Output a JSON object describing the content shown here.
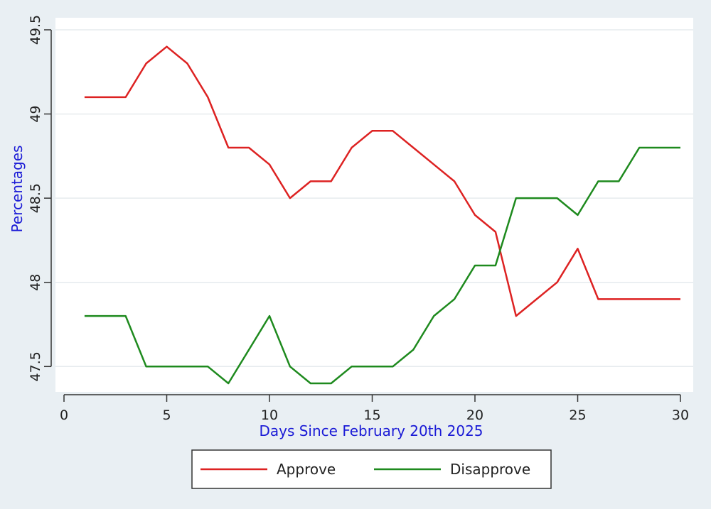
{
  "chart_data": {
    "type": "line",
    "title": "",
    "xlabel": "Days Since February 20th 2025",
    "ylabel": "Percentages",
    "xlim": [
      0,
      30
    ],
    "ylim": [
      47.4,
      49.5
    ],
    "x_ticks": [
      0,
      5,
      10,
      15,
      20,
      25,
      30
    ],
    "y_ticks": [
      47.5,
      48,
      48.5,
      49,
      49.5
    ],
    "grid": true,
    "legend_position": "bottom",
    "x": [
      1,
      2,
      3,
      4,
      5,
      6,
      7,
      8,
      9,
      10,
      11,
      12,
      13,
      14,
      15,
      16,
      17,
      18,
      19,
      20,
      21,
      22,
      23,
      24,
      25,
      26,
      27,
      28,
      29,
      30
    ],
    "series": [
      {
        "name": "Approve",
        "color": "#dd2222",
        "values": [
          49.1,
          49.1,
          49.1,
          49.3,
          49.4,
          49.3,
          49.1,
          48.8,
          48.8,
          48.7,
          48.5,
          48.6,
          48.6,
          48.8,
          48.9,
          48.9,
          48.8,
          48.7,
          48.6,
          48.4,
          48.3,
          47.8,
          47.9,
          48.0,
          48.2,
          47.9,
          47.9,
          47.9,
          47.9,
          47.9
        ]
      },
      {
        "name": "Disapprove",
        "color": "#1e8a1e",
        "values": [
          47.8,
          47.8,
          47.8,
          47.5,
          47.5,
          47.5,
          47.5,
          47.4,
          47.6,
          47.8,
          47.5,
          47.4,
          47.4,
          47.5,
          47.5,
          47.5,
          47.6,
          47.8,
          47.9,
          48.1,
          48.1,
          48.5,
          48.5,
          48.5,
          48.4,
          48.6,
          48.6,
          48.8,
          48.8,
          48.8
        ]
      }
    ],
    "colors": {
      "background": "#e9eff3",
      "plot_background": "#ffffff",
      "grid": "#e6ebee",
      "axis_title": "#1a1ad6"
    }
  }
}
